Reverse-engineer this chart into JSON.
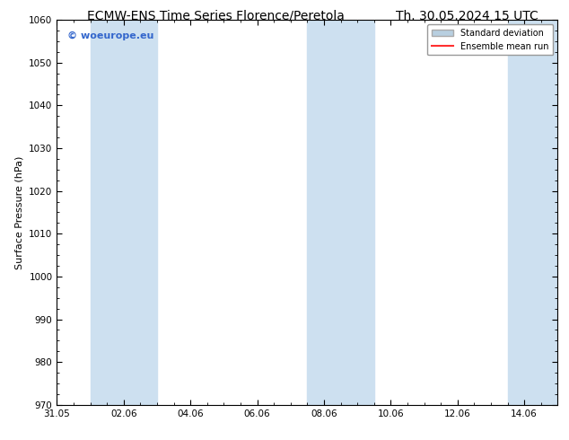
{
  "title_left": "ECMW-ENS Time Series Florence/Peretola",
  "title_right": "Th. 30.05.2024 15 UTC",
  "ylabel": "Surface Pressure (hPa)",
  "ylim": [
    970,
    1060
  ],
  "yticks": [
    970,
    980,
    990,
    1000,
    1010,
    1020,
    1030,
    1040,
    1050,
    1060
  ],
  "xlim_start": 0,
  "xlim_end": 15,
  "xtick_labels": [
    "31.05",
    "02.06",
    "04.06",
    "06.06",
    "08.06",
    "10.06",
    "12.06",
    "14.06"
  ],
  "xtick_positions": [
    0,
    2,
    4,
    6,
    8,
    10,
    12,
    14
  ],
  "shaded_bands": [
    {
      "x_start": 1.0,
      "x_end": 3.0
    },
    {
      "x_start": 7.5,
      "x_end": 9.5
    },
    {
      "x_start": 13.5,
      "x_end": 15.0
    }
  ],
  "shade_color": "#cde0f0",
  "background_color": "#ffffff",
  "watermark_text": "© woeurope.eu",
  "watermark_color": "#3366cc",
  "legend_std_label": "Standard deviation",
  "legend_ens_label": "Ensemble mean run",
  "legend_std_color": "#b8cfe0",
  "legend_ens_color": "#ff3030",
  "title_fontsize": 10,
  "axis_label_fontsize": 8,
  "tick_fontsize": 7.5
}
